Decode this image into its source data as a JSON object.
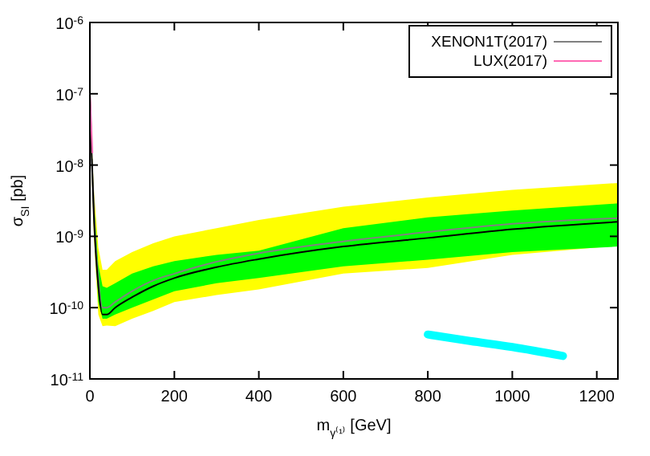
{
  "chart_data": {
    "type": "line",
    "xlabel": "m$_{γ⁽¹⁾}$ [GeV]",
    "ylabel": "σ$_{SI}$ [pb]",
    "log": "y",
    "grid": false,
    "legend": "top right",
    "marker": "none",
    "xlim": [
      0,
      1250
    ],
    "xticks": [
      0,
      200,
      400,
      600,
      800,
      1000,
      1200
    ],
    "ylim": [
      1e-11,
      1e-06
    ],
    "yticks": [
      {
        "value": 1e-11,
        "label": "10$^{-11}$"
      },
      {
        "value": 1e-10,
        "label": "10$^{-10}$"
      },
      {
        "value": 1e-09,
        "label": "10$^{-9}$"
      },
      {
        "value": 1e-08,
        "label": "10$^{-8}$"
      },
      {
        "value": 1e-07,
        "label": "10$^{-7}$"
      },
      {
        "value": 1e-06,
        "label": "10$^{-6}$"
      }
    ],
    "x": [
      0,
      5,
      10,
      20,
      30,
      40,
      60,
      100,
      150,
      200,
      300,
      400,
      600,
      800,
      1000,
      1250
    ],
    "series": [
      {
        "color": "#ffff00",
        "values": [
          null,
          null,
          null,
          null,
          null,
          null,
          null,
          null,
          null,
          null,
          null,
          null,
          null,
          null,
          null,
          null
        ],
        "lower": [
          1e-07,
          6e-09,
          9e-10,
          8e-11,
          5.5e-11,
          5.6e-11,
          5.5e-11,
          7e-11,
          9e-11,
          1.2e-10,
          1.5e-10,
          1.8e-10,
          3e-10,
          3.6e-10,
          5.5e-10,
          7.4e-10
        ],
        "upper": [
          1e-07,
          1.8e-08,
          4e-09,
          7e-10,
          3.4e-10,
          3.4e-10,
          4.5e-10,
          6e-10,
          8e-10,
          1e-09,
          1.3e-09,
          1.7e-09,
          2.6e-09,
          3.5e-09,
          4.5e-09,
          5.6e-09
        ]
      },
      {
        "color": "#00ff00",
        "values": [
          null,
          null,
          null,
          null,
          null,
          null,
          null,
          null,
          null,
          null,
          null,
          null,
          null,
          null,
          null,
          null
        ],
        "lower": [
          1e-07,
          8e-09,
          1.2e-09,
          1.2e-10,
          7e-11,
          7e-11,
          8e-11,
          1e-10,
          1.3e-10,
          1.7e-10,
          2.2e-10,
          2.6e-10,
          3.8e-10,
          4.7e-10,
          6e-10,
          7.2e-10
        ],
        "upper": [
          1e-07,
          1.4e-08,
          2.8e-09,
          4e-10,
          2e-10,
          1.9e-10,
          2.2e-10,
          3e-10,
          3.8e-10,
          4.5e-10,
          5.5e-10,
          6.3e-10,
          1.3e-09,
          1.85e-09,
          2.3e-09,
          2.9e-09
        ]
      },
      {
        "name": "XENON1T(2017)",
        "color": "#808080",
        "values": [
          null,
          1.2e-08,
          2e-09,
          2.5e-10,
          1e-10,
          1e-10,
          1.2e-10,
          1.7e-10,
          2.4e-10,
          3e-10,
          4.4e-10,
          5.8e-10,
          8.5e-10,
          1.15e-09,
          1.5e-09,
          1.8e-09
        ]
      },
      {
        "color": "#000000",
        "values": [
          1e-07,
          1e-08,
          1.6e-09,
          2e-10,
          8e-11,
          8e-11,
          1e-10,
          1.4e-10,
          2e-10,
          2.6e-10,
          3.7e-10,
          4.8e-10,
          7.2e-10,
          9.5e-10,
          1.26e-09,
          1.6e-09
        ]
      },
      {
        "name": "LUX(2017)",
        "color": "#ff69b4",
        "x": [
          0,
          3,
          6
        ],
        "values": [
          1e-07,
          4e-08,
          1.5e-08
        ]
      },
      {
        "color": "#00ffff",
        "x": [
          800,
          900,
          1000,
          1120
        ],
        "values": [
          4.2e-11,
          3.4e-11,
          2.8e-11,
          2.1e-11
        ]
      }
    ]
  }
}
